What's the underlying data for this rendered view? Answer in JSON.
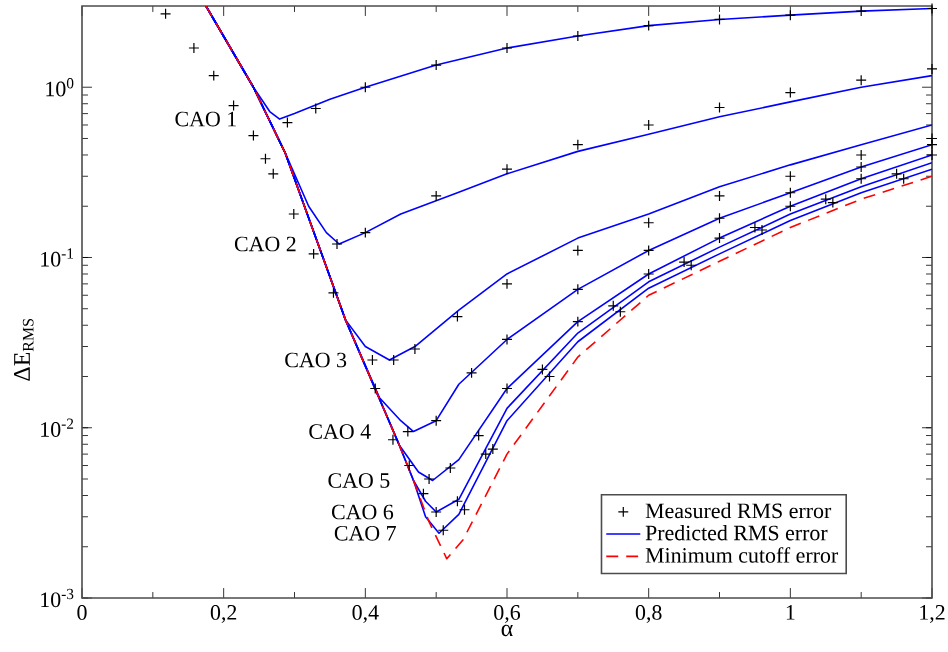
{
  "chart_data": {
    "type": "line",
    "xlabel": "α",
    "ylabel": "ΔE$_{RMS}$",
    "xlim": [
      0,
      1.2
    ],
    "ylim": [
      0.001,
      3
    ],
    "xticks": [
      0,
      {
        "value": 0.2,
        "label": "0,2"
      },
      {
        "value": 0.4,
        "label": "0,4"
      },
      {
        "value": 0.6,
        "label": "0,6"
      },
      {
        "value": 0.8,
        "label": "0,8"
      },
      1,
      {
        "value": 1.2,
        "label": "1,2"
      }
    ],
    "yticks": [
      {
        "value": 0.001,
        "label": "10$^{-3}$"
      },
      {
        "value": 0.01,
        "label": "10$^{-2}$"
      },
      {
        "value": 0.1,
        "label": "10$^{-1}$"
      },
      {
        "value": 1,
        "label": "10$^{0}$"
      }
    ],
    "log": "y",
    "legend": "bottom right",
    "series": [
      {
        "name": "Measured RMS error",
        "type": "scatter",
        "marker": "cross",
        "color": "#000000",
        "x": [
          0.118,
          0.158,
          0.186,
          0.214,
          0.242,
          0.259,
          0.27,
          0.299,
          0.327,
          0.355,
          0.414,
          0.439,
          0.462,
          0.482,
          0.29,
          0.33,
          0.4,
          0.5,
          0.6,
          0.7,
          0.8,
          0.9,
          1.0,
          1.1,
          1.2,
          0.36,
          0.4,
          0.5,
          0.6,
          0.7,
          0.8,
          0.9,
          1.0,
          1.1,
          1.2,
          0.41,
          0.44,
          0.47,
          0.53,
          0.6,
          0.7,
          0.8,
          0.9,
          1.0,
          1.1,
          1.2,
          0.46,
          0.5,
          0.55,
          0.6,
          0.7,
          0.8,
          0.9,
          1.0,
          1.1,
          1.2,
          0.49,
          0.52,
          0.56,
          0.6,
          0.7,
          0.8,
          0.9,
          1.0,
          1.1,
          1.2,
          0.5,
          0.53,
          0.57,
          0.65,
          0.75,
          0.85,
          0.95,
          1.05,
          1.15,
          0.51,
          0.54,
          0.58,
          0.66,
          0.76,
          0.86,
          0.96,
          1.06,
          1.16
        ],
        "values": [
          2.7,
          1.7,
          1.17,
          0.78,
          0.52,
          0.38,
          0.31,
          0.18,
          0.105,
          0.062,
          0.017,
          0.0085,
          0.006,
          0.0041,
          0.62,
          0.75,
          1.0,
          1.35,
          1.7,
          2.0,
          2.3,
          2.5,
          2.65,
          2.8,
          2.9,
          0.12,
          0.14,
          0.23,
          0.33,
          0.46,
          0.6,
          0.76,
          0.93,
          1.1,
          1.28,
          0.025,
          0.025,
          0.029,
          0.045,
          0.07,
          0.11,
          0.16,
          0.23,
          0.3,
          0.4,
          0.5,
          0.0095,
          0.011,
          0.021,
          0.033,
          0.065,
          0.11,
          0.17,
          0.24,
          0.34,
          0.46,
          0.005,
          0.0058,
          0.009,
          0.017,
          0.042,
          0.08,
          0.13,
          0.2,
          0.29,
          0.4,
          0.0032,
          0.0037,
          0.007,
          0.022,
          0.052,
          0.094,
          0.15,
          0.22,
          0.31,
          0.0025,
          0.0033,
          0.0075,
          0.02,
          0.048,
          0.09,
          0.145,
          0.21,
          0.29
        ]
      },
      {
        "name": "Predicted RMS error",
        "color": "#0000ff",
        "x": [
          0.175,
          0.242,
          0.265,
          0.279,
          0.3,
          0.35,
          0.4,
          0.5,
          0.6,
          0.7,
          0.8,
          0.9,
          1.0,
          1.1,
          1.2
        ],
        "values": [
          3.0,
          1.0,
          0.72,
          0.65,
          0.7,
          0.85,
          1.0,
          1.35,
          1.7,
          2.0,
          2.3,
          2.5,
          2.65,
          2.8,
          2.9
        ]
      },
      {
        "color": "#0000ff",
        "x": [
          0.175,
          0.242,
          0.287,
          0.32,
          0.345,
          0.363,
          0.4,
          0.45,
          0.53,
          0.6,
          0.7,
          0.8,
          0.9,
          1.0,
          1.1,
          1.2
        ],
        "values": [
          3.0,
          1.0,
          0.41,
          0.2,
          0.14,
          0.12,
          0.14,
          0.18,
          0.24,
          0.31,
          0.42,
          0.53,
          0.67,
          0.82,
          1.0,
          1.17
        ]
      },
      {
        "color": "#0000ff",
        "x": [
          0.175,
          0.242,
          0.287,
          0.372,
          0.4,
          0.434,
          0.47,
          0.532,
          0.6,
          0.7,
          0.8,
          0.9,
          1.0,
          1.1,
          1.2
        ],
        "values": [
          3.0,
          1.0,
          0.41,
          0.043,
          0.03,
          0.025,
          0.03,
          0.049,
          0.08,
          0.13,
          0.18,
          0.26,
          0.35,
          0.46,
          0.6
        ]
      },
      {
        "color": "#0000ff",
        "x": [
          0.175,
          0.242,
          0.287,
          0.372,
          0.42,
          0.45,
          0.468,
          0.5,
          0.532,
          0.6,
          0.7,
          0.8,
          0.9,
          1.0,
          1.1,
          1.2
        ],
        "values": [
          3.0,
          1.0,
          0.41,
          0.043,
          0.015,
          0.011,
          0.0095,
          0.011,
          0.018,
          0.033,
          0.065,
          0.11,
          0.17,
          0.24,
          0.34,
          0.46
        ]
      },
      {
        "color": "#0000ff",
        "x": [
          0.175,
          0.242,
          0.287,
          0.372,
          0.448,
          0.475,
          0.495,
          0.532,
          0.6,
          0.7,
          0.8,
          0.9,
          1.0,
          1.1,
          1.2
        ],
        "values": [
          3.0,
          1.0,
          0.41,
          0.043,
          0.0079,
          0.0055,
          0.0049,
          0.0065,
          0.017,
          0.042,
          0.08,
          0.13,
          0.2,
          0.29,
          0.4
        ]
      },
      {
        "color": "#0000ff",
        "x": [
          0.175,
          0.242,
          0.287,
          0.372,
          0.448,
          0.468,
          0.485,
          0.5,
          0.532,
          0.6,
          0.7,
          0.8,
          0.9,
          1.0,
          1.1,
          1.2
        ],
        "values": [
          3.0,
          1.0,
          0.41,
          0.043,
          0.0079,
          0.0049,
          0.0037,
          0.0032,
          0.0038,
          0.013,
          0.036,
          0.072,
          0.115,
          0.18,
          0.26,
          0.36
        ]
      },
      {
        "color": "#0000ff",
        "x": [
          0.175,
          0.242,
          0.287,
          0.372,
          0.448,
          0.468,
          0.485,
          0.504,
          0.532,
          0.6,
          0.7,
          0.8,
          0.9,
          1.0,
          1.1,
          1.2
        ],
        "values": [
          3.0,
          1.0,
          0.41,
          0.043,
          0.0079,
          0.0049,
          0.003,
          0.0024,
          0.0031,
          0.011,
          0.032,
          0.066,
          0.105,
          0.165,
          0.24,
          0.33
        ]
      },
      {
        "name": "Minimum cutoff error",
        "color": "#ff0000",
        "line_style": "dashed",
        "x": [
          0.175,
          0.242,
          0.287,
          0.372,
          0.448,
          0.468,
          0.49,
          0.515,
          0.538,
          0.6,
          0.7,
          0.8,
          0.9,
          1.0,
          1.1,
          1.2
        ],
        "values": [
          3.0,
          1.0,
          0.41,
          0.043,
          0.0079,
          0.0049,
          0.0028,
          0.0017,
          0.0022,
          0.007,
          0.026,
          0.06,
          0.095,
          0.15,
          0.22,
          0.3
        ]
      }
    ],
    "annotations": [
      {
        "text": "CAO 1",
        "x": 0.279,
        "y": 0.65
      },
      {
        "text": "CAO 2",
        "x": 0.363,
        "y": 0.12
      },
      {
        "text": "CAO 3",
        "x": 0.434,
        "y": 0.025
      },
      {
        "text": "CAO 4",
        "x": 0.468,
        "y": 0.0095
      },
      {
        "text": "CAO 5",
        "x": 0.495,
        "y": 0.0049
      },
      {
        "text": "CAO 6",
        "x": 0.5,
        "y": 0.0032
      },
      {
        "text": "CAO 7",
        "x": 0.504,
        "y": 0.0024
      }
    ]
  }
}
